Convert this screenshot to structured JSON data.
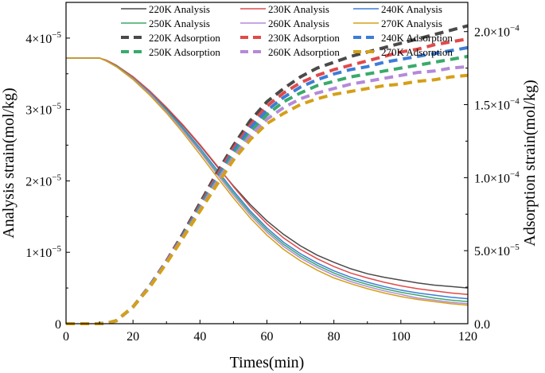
{
  "chart_data": {
    "type": "line",
    "xlabel": "Times(min)",
    "ylabel_left": "Analysis strain(mol/kg)",
    "ylabel_right": "Adsorption strain(mol/kg)",
    "xlim": [
      0,
      120
    ],
    "ylim_left": [
      0,
      4.5e-05
    ],
    "ylim_right": [
      0,
      0.00022
    ],
    "x_ticks": [
      0,
      20,
      40,
      60,
      80,
      100,
      120
    ],
    "x_tick_labels": [
      "0",
      "20",
      "40",
      "60",
      "80",
      "100",
      "120"
    ],
    "y_left_ticks": [
      {
        "value": 0,
        "mant": "0",
        "exp": ""
      },
      {
        "value": 1e-05,
        "mant": "1×10",
        "exp": "−5"
      },
      {
        "value": 2e-05,
        "mant": "2×10",
        "exp": "−5"
      },
      {
        "value": 3e-05,
        "mant": "3×10",
        "exp": "−5"
      },
      {
        "value": 4e-05,
        "mant": "4×10",
        "exp": "−5"
      }
    ],
    "y_right_ticks": [
      {
        "value": 0,
        "mant": "0.0",
        "exp": ""
      },
      {
        "value": 5e-05,
        "mant": "5.0×10",
        "exp": "−5"
      },
      {
        "value": 0.0001,
        "mant": "1.0×10",
        "exp": "−4"
      },
      {
        "value": 0.00015,
        "mant": "1.5×10",
        "exp": "−4"
      },
      {
        "value": 0.0002,
        "mant": "2.0×10",
        "exp": "−4"
      }
    ],
    "legend_position": "top",
    "x": [
      0,
      5,
      10,
      12,
      15,
      20,
      25,
      30,
      35,
      40,
      45,
      50,
      55,
      60,
      65,
      70,
      75,
      80,
      85,
      90,
      95,
      100,
      105,
      110,
      115,
      120
    ],
    "series": [
      {
        "name": "220K Analysis",
        "axis": "left",
        "style": "solid",
        "color": "#4a4a4a",
        "values": [
          3.72e-05,
          3.72e-05,
          3.72e-05,
          3.69e-05,
          3.62e-05,
          3.45e-05,
          3.25e-05,
          3.02e-05,
          2.77e-05,
          2.5e-05,
          2.21e-05,
          1.93e-05,
          1.67e-05,
          1.44e-05,
          1.25e-05,
          1.09e-05,
          9.6e-06,
          8.6e-06,
          7.7e-06,
          7e-06,
          6.5e-06,
          6.1e-06,
          5.7e-06,
          5.4e-06,
          5.2e-06,
          5e-06
        ]
      },
      {
        "name": "230K Analysis",
        "axis": "left",
        "style": "solid",
        "color": "#e04a4a",
        "values": [
          3.72e-05,
          3.72e-05,
          3.72e-05,
          3.69e-05,
          3.62e-05,
          3.46e-05,
          3.26e-05,
          3.03e-05,
          2.78e-05,
          2.51e-05,
          2.22e-05,
          1.92e-05,
          1.64e-05,
          1.4e-05,
          1.2e-05,
          1.04e-05,
          9.1e-06,
          8e-06,
          7.1e-06,
          6.4e-06,
          5.8e-06,
          5.3e-06,
          4.9e-06,
          4.6e-06,
          4.3e-06,
          4.1e-06
        ]
      },
      {
        "name": "240K Analysis",
        "axis": "left",
        "style": "solid",
        "color": "#3d7dd8",
        "values": [
          3.72e-05,
          3.72e-05,
          3.72e-05,
          3.68e-05,
          3.61e-05,
          3.44e-05,
          3.24e-05,
          3e-05,
          2.74e-05,
          2.46e-05,
          2.16e-05,
          1.86e-05,
          1.58e-05,
          1.34e-05,
          1.14e-05,
          9.8e-06,
          8.5e-06,
          7.4e-06,
          6.5e-06,
          5.8e-06,
          5.2e-06,
          4.7e-06,
          4.3e-06,
          4e-06,
          3.7e-06,
          3.5e-06
        ]
      },
      {
        "name": "250K Analysis",
        "axis": "left",
        "style": "solid",
        "color": "#3aaa6a",
        "values": [
          3.72e-05,
          3.72e-05,
          3.72e-05,
          3.68e-05,
          3.61e-05,
          3.44e-05,
          3.23e-05,
          2.99e-05,
          2.72e-05,
          2.43e-05,
          2.13e-05,
          1.83e-05,
          1.55e-05,
          1.31e-05,
          1.11e-05,
          9.5e-06,
          8.2e-06,
          7.1e-06,
          6.2e-06,
          5.5e-06,
          4.9e-06,
          4.4e-06,
          4e-06,
          3.6e-06,
          3.3e-06,
          3.1e-06
        ]
      },
      {
        "name": "260K Analysis",
        "axis": "left",
        "style": "solid",
        "color": "#b48ad8",
        "values": [
          3.72e-05,
          3.72e-05,
          3.72e-05,
          3.68e-05,
          3.6e-05,
          3.43e-05,
          3.22e-05,
          2.97e-05,
          2.7e-05,
          2.41e-05,
          2.1e-05,
          1.8e-05,
          1.52e-05,
          1.28e-05,
          1.08e-05,
          9.2e-06,
          7.9e-06,
          6.8e-06,
          5.9e-06,
          5.2e-06,
          4.6e-06,
          4.1e-06,
          3.6e-06,
          3.3e-06,
          3e-06,
          2.8e-06
        ]
      },
      {
        "name": "270K Analysis",
        "axis": "left",
        "style": "solid",
        "color": "#d4a017",
        "values": [
          3.72e-05,
          3.72e-05,
          3.72e-05,
          3.68e-05,
          3.6e-05,
          3.42e-05,
          3.2e-05,
          2.95e-05,
          2.67e-05,
          2.37e-05,
          2.06e-05,
          1.76e-05,
          1.48e-05,
          1.24e-05,
          1.04e-05,
          8.8e-06,
          7.5e-06,
          6.4e-06,
          5.6e-06,
          4.9e-06,
          4.3e-06,
          3.8e-06,
          3.4e-06,
          3.1e-06,
          2.8e-06,
          2.6e-06
        ]
      },
      {
        "name": "220K Adsorption",
        "axis": "right",
        "style": "dashed",
        "color": "#4a4a4a",
        "values": [
          0,
          0,
          0,
          2e-07,
          2e-06,
          1.15e-05,
          2.6e-05,
          4.3e-05,
          6.2e-05,
          8.25e-05,
          0.000103,
          0.000122,
          0.000139,
          0.000152,
          0.000161,
          0.000169,
          0.000175,
          0.000179,
          0.000183,
          0.000186,
          0.000189,
          0.000192,
          0.000195,
          0.000198,
          0.000201,
          0.000204
        ]
      },
      {
        "name": "230K Adsorption",
        "axis": "right",
        "style": "dashed",
        "color": "#e04a4a",
        "values": [
          0,
          0,
          0,
          2e-07,
          2e-06,
          1.15e-05,
          2.6e-05,
          4.3e-05,
          6.1e-05,
          8.1e-05,
          0.000101,
          0.00012,
          0.000136,
          0.000149,
          0.000158,
          0.000165,
          0.00017,
          0.000174,
          0.000177,
          0.00018,
          0.000183,
          0.000186,
          0.000188,
          0.000191,
          0.000193,
          0.000195
        ]
      },
      {
        "name": "240K Adsorption",
        "axis": "right",
        "style": "dashed",
        "color": "#3d7dd8",
        "values": [
          0,
          0,
          0,
          2e-07,
          2e-06,
          1.15e-05,
          2.6e-05,
          4.25e-05,
          6.05e-05,
          8e-05,
          9.95e-05,
          0.000118,
          0.000134,
          0.000146,
          0.000155,
          0.000162,
          0.000167,
          0.000171,
          0.000174,
          0.000176,
          0.000179,
          0.000181,
          0.000183,
          0.000185,
          0.000187,
          0.000189
        ]
      },
      {
        "name": "250K Adsorption",
        "axis": "right",
        "style": "dashed",
        "color": "#3aaa6a",
        "values": [
          0,
          0,
          0,
          2e-07,
          2e-06,
          1.15e-05,
          2.55e-05,
          4.2e-05,
          6e-05,
          7.9e-05,
          9.8e-05,
          0.000116,
          0.000131,
          0.000143,
          0.000152,
          0.000158,
          0.000163,
          0.000166,
          0.000169,
          0.000171,
          0.000173,
          0.000175,
          0.000177,
          0.000179,
          0.000181,
          0.000183
        ]
      },
      {
        "name": "260K Adsorption",
        "axis": "right",
        "style": "dashed",
        "color": "#b48ad8",
        "values": [
          0,
          0,
          0,
          2e-07,
          2e-06,
          1.15e-05,
          2.55e-05,
          4.2e-05,
          5.95e-05,
          7.8e-05,
          9.7e-05,
          0.000114,
          0.000129,
          0.00014,
          0.000148,
          0.000154,
          0.000158,
          0.000161,
          0.000164,
          0.000166,
          0.000168,
          0.00017,
          0.000172,
          0.000173,
          0.000175,
          0.000176
        ]
      },
      {
        "name": "270K Adsorption",
        "axis": "right",
        "style": "dashed",
        "color": "#d4a017",
        "values": [
          0,
          0,
          0,
          2e-07,
          2e-06,
          1.15e-05,
          2.5e-05,
          4.15e-05,
          5.9e-05,
          7.7e-05,
          9.5e-05,
          0.000112,
          0.000126,
          0.000137,
          0.000144,
          0.00015,
          0.000154,
          0.000157,
          0.000159,
          0.000161,
          0.000163,
          0.000164,
          0.000166,
          0.000167,
          0.000169,
          0.00017
        ]
      }
    ]
  }
}
